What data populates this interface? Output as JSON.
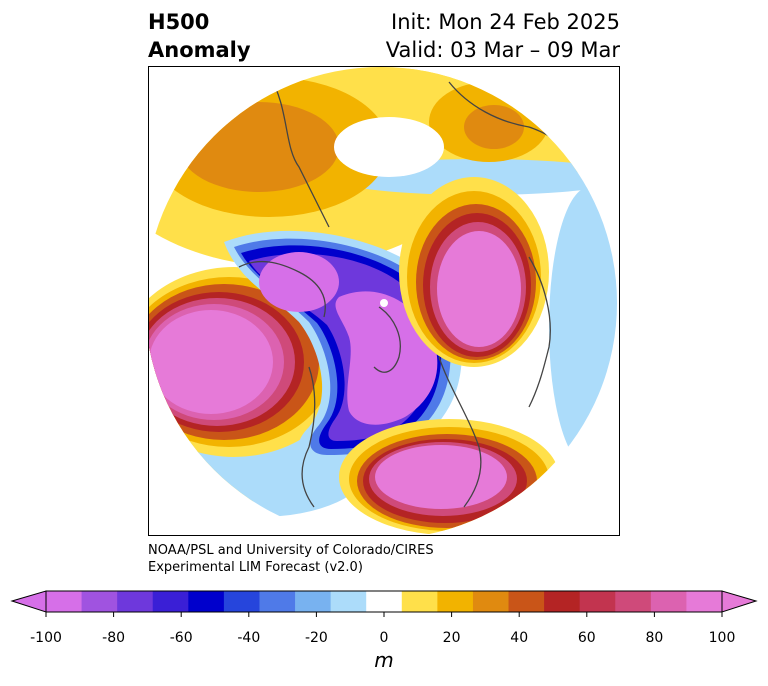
{
  "header": {
    "variable": "H500",
    "product": "Anomaly",
    "init": "Init: Mon 24 Feb 2025",
    "valid": "Valid: 03 Mar – 09 Mar"
  },
  "credit": {
    "line1": "NOAA/PSL and University of Colorado/CIRES",
    "line2": "Experimental LIM Forecast (v2.0)"
  },
  "colorbar": {
    "units": "m",
    "bins": [
      -100,
      -90,
      -80,
      -70,
      -60,
      -50,
      -40,
      -30,
      -20,
      -10,
      10,
      20,
      30,
      40,
      50,
      60,
      70,
      80,
      90,
      100
    ],
    "colors": [
      "#d66fe8",
      "#a053e0",
      "#6e38dc",
      "#3a1fd6",
      "#0000cc",
      "#2645dc",
      "#4f7ae8",
      "#78b2f0",
      "#acdcfa",
      "#ffffff",
      "#ffe04a",
      "#f2b300",
      "#e08a10",
      "#c95518",
      "#b42424",
      "#c2344f",
      "#cf4a7a",
      "#dc62b0",
      "#e67ad8"
    ],
    "ticks": [
      "-100",
      "-80",
      "-60",
      "-40",
      "-20",
      "0",
      "20",
      "40",
      "60",
      "80",
      "100"
    ]
  },
  "map": {
    "projection": "north-polar-stereographic",
    "features": [
      {
        "name": "north-pacific-trough",
        "sign": "negative",
        "level": "strong"
      },
      {
        "name": "canadian-arctic-trough",
        "sign": "negative",
        "level": "strong"
      },
      {
        "name": "east-siberian-trough",
        "sign": "negative",
        "level": "strong"
      },
      {
        "name": "eastern-us-ridge",
        "sign": "positive",
        "level": "strong"
      },
      {
        "name": "scandinavia-ridge",
        "sign": "positive",
        "level": "strong"
      },
      {
        "name": "central-pacific-ridge",
        "sign": "positive",
        "level": "moderate"
      },
      {
        "name": "central-asia-ridge",
        "sign": "positive",
        "level": "moderate"
      }
    ]
  }
}
